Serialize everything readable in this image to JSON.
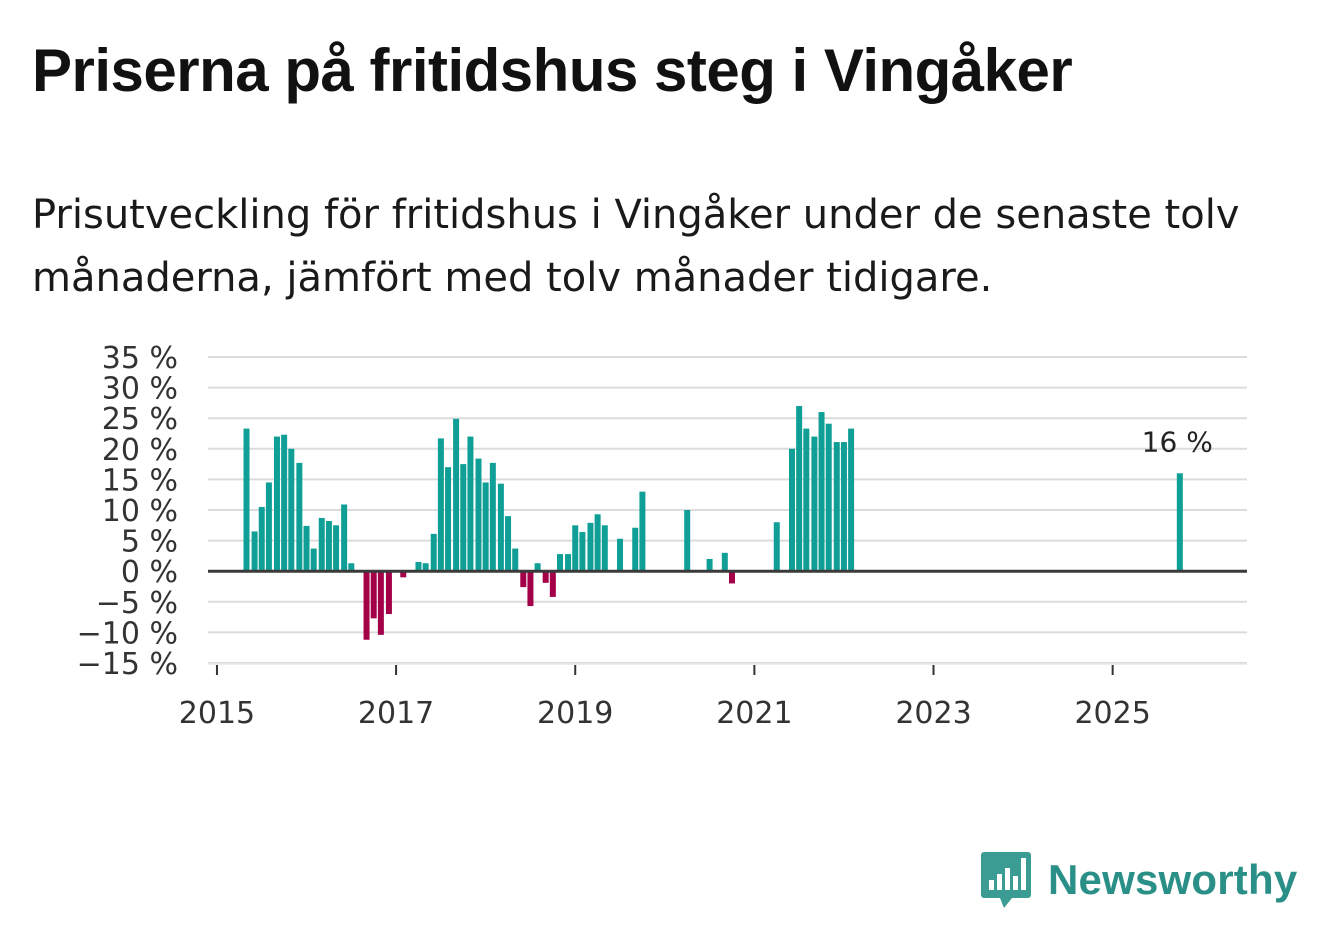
{
  "title": "Priserna på fritidshus steg i Vingåker",
  "subtitle": "Prisutveckling för fritidshus i Vingåker under de senaste tolv månaderna, jämfört med tolv månader tidigare.",
  "brand": {
    "name": "Newsworthy",
    "color": "#2a8f86",
    "icon": "bar-chart-speech-bubble-icon"
  },
  "colors": {
    "positive": "#0f9f96",
    "negative": "#a30048",
    "zero_line": "#3a3a3a",
    "grid": "#dcdcdc"
  },
  "chart_data": {
    "type": "bar",
    "title": "Priserna på fritidshus steg i Vingåker",
    "xlabel": "",
    "ylabel": "",
    "ylim": [
      -15,
      35
    ],
    "xlim": [
      2014.9,
      2026.5
    ],
    "yticks": [
      -15,
      -10,
      -5,
      0,
      5,
      10,
      15,
      20,
      25,
      30,
      35
    ],
    "ytick_labels": [
      "−15 %",
      "−10 %",
      "−5 %",
      "0 %",
      "5 %",
      "10 %",
      "15 %",
      "20 %",
      "25 %",
      "30 %",
      "35 %"
    ],
    "xticks": [
      2015,
      2017,
      2019,
      2021,
      2023,
      2025
    ],
    "xtick_labels": [
      "2015",
      "2017",
      "2019",
      "2021",
      "2023",
      "2025"
    ],
    "grid": true,
    "annotation": {
      "text": "16 %",
      "x": 2025.75,
      "y": 16
    },
    "series": [
      {
        "name": "Prisutveckling",
        "x": [
          2015.33,
          2015.42,
          2015.5,
          2015.58,
          2015.67,
          2015.75,
          2015.83,
          2015.92,
          2016.0,
          2016.08,
          2016.17,
          2016.25,
          2016.33,
          2016.42,
          2016.5,
          2016.67,
          2016.75,
          2016.83,
          2016.92,
          2017.08,
          2017.25,
          2017.33,
          2017.42,
          2017.5,
          2017.58,
          2017.67,
          2017.75,
          2017.83,
          2017.92,
          2018.0,
          2018.08,
          2018.17,
          2018.25,
          2018.33,
          2018.42,
          2018.5,
          2018.58,
          2018.67,
          2018.75,
          2018.83,
          2018.92,
          2019.0,
          2019.08,
          2019.17,
          2019.25,
          2019.33,
          2019.5,
          2019.67,
          2019.75,
          2020.25,
          2020.5,
          2020.67,
          2020.75,
          2021.25,
          2021.42,
          2021.5,
          2021.58,
          2021.67,
          2021.75,
          2021.83,
          2021.92,
          2022.0,
          2022.08,
          2025.75
        ],
        "values": [
          23.3,
          6.5,
          10.5,
          14.5,
          22,
          22.3,
          20,
          17.7,
          7.4,
          3.7,
          8.7,
          8.2,
          7.5,
          10.9,
          1.3,
          -11.2,
          -7.7,
          -10.4,
          -7,
          -1,
          1.5,
          1.3,
          6.1,
          21.7,
          17,
          24.9,
          17.5,
          22,
          18.4,
          14.5,
          17.7,
          14.3,
          9,
          3.7,
          -2.6,
          -5.7,
          1.3,
          -1.9,
          -4.2,
          2.8,
          2.8,
          7.5,
          6.4,
          7.9,
          9.3,
          7.5,
          5.3,
          7.1,
          13,
          10,
          2,
          3,
          -2,
          8,
          20,
          27,
          23.3,
          22,
          26,
          24.1,
          21.1,
          21.1,
          23.3,
          16
        ]
      }
    ]
  }
}
